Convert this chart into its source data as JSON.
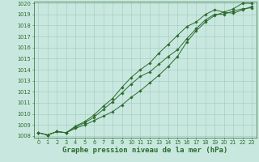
{
  "xlabel": "Graphe pression niveau de la mer (hPa)",
  "ylim_min": 1008,
  "ylim_max": 1020,
  "xlim_min": 0,
  "xlim_max": 23,
  "yticks": [
    1008,
    1009,
    1010,
    1011,
    1012,
    1013,
    1014,
    1015,
    1016,
    1017,
    1018,
    1019,
    1020
  ],
  "xticks": [
    0,
    1,
    2,
    3,
    4,
    5,
    6,
    7,
    8,
    9,
    10,
    11,
    12,
    13,
    14,
    15,
    16,
    17,
    18,
    19,
    20,
    21,
    22,
    23
  ],
  "hours": [
    0,
    1,
    2,
    3,
    4,
    5,
    6,
    7,
    8,
    9,
    10,
    11,
    12,
    13,
    14,
    15,
    16,
    17,
    18,
    19,
    20,
    21,
    22,
    23
  ],
  "line1": [
    1008.3,
    1008.1,
    1008.4,
    1008.3,
    1008.7,
    1009.0,
    1009.4,
    1009.8,
    1010.2,
    1010.8,
    1011.5,
    1012.1,
    1012.8,
    1013.5,
    1014.3,
    1015.2,
    1016.5,
    1017.5,
    1018.3,
    1018.9,
    1019.2,
    1019.1,
    1019.4,
    1019.7
  ],
  "line2": [
    1008.3,
    1008.1,
    1008.4,
    1008.3,
    1008.8,
    1009.2,
    1009.7,
    1010.4,
    1011.1,
    1011.9,
    1012.7,
    1013.4,
    1013.8,
    1014.5,
    1015.2,
    1015.8,
    1016.8,
    1017.7,
    1018.5,
    1019.0,
    1019.0,
    1019.3,
    1019.5,
    1019.6
  ],
  "line3": [
    1008.3,
    1008.1,
    1008.4,
    1008.3,
    1008.9,
    1009.3,
    1009.9,
    1010.7,
    1011.4,
    1012.4,
    1013.3,
    1014.0,
    1014.6,
    1015.5,
    1016.3,
    1017.1,
    1017.9,
    1018.3,
    1019.0,
    1019.4,
    1019.2,
    1019.5,
    1020.0,
    1020.0
  ],
  "line_color": "#2d6a2d",
  "bg_color": "#c8e8df",
  "grid_color": "#9fc8c0",
  "marker": "D",
  "marker_size": 1.8,
  "line_width": 0.7,
  "tick_fontsize": 4.8,
  "xlabel_fontsize": 6.5
}
